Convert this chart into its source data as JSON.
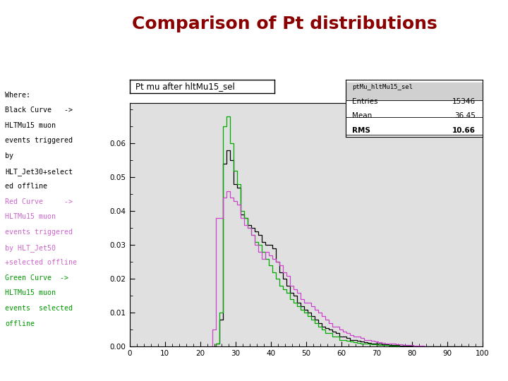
{
  "title": "Comparison of Pt distributions",
  "title_color": "#8B0000",
  "title_fontsize": 18,
  "plot_title": "Pt mu after hltMu15_sel",
  "xlim": [
    0,
    100
  ],
  "ylim": [
    0,
    0.072
  ],
  "xticks": [
    0,
    10,
    20,
    30,
    40,
    50,
    60,
    70,
    80,
    90,
    100
  ],
  "yticks": [
    0,
    0.01,
    0.02,
    0.03,
    0.04,
    0.05,
    0.06
  ],
  "bg_color": "#e0e0e0",
  "fig_bg": "#ffffff",
  "stats_label": "ptMu_hltMu15_sel",
  "stats_entries": "15346",
  "stats_mean": "36.45",
  "stats_rms": "10.66",
  "left_text": [
    {
      "text": "Where:",
      "color": "#000000"
    },
    {
      "text": "Black Curve   ->",
      "color": "#000000"
    },
    {
      "text": "HLTMu15 muon",
      "color": "#000000"
    },
    {
      "text": "events triggered",
      "color": "#000000"
    },
    {
      "text": "by",
      "color": "#000000"
    },
    {
      "text": "HLT_Jet30+select",
      "color": "#000000"
    },
    {
      "text": "ed offline",
      "color": "#000000"
    },
    {
      "text": "Red Curve     ->",
      "color": "#cc66cc"
    },
    {
      "text": "HLTMu15 muon",
      "color": "#cc66cc"
    },
    {
      "text": "events triggered",
      "color": "#cc66cc"
    },
    {
      "text": "by HLT_Jet50",
      "color": "#cc66cc"
    },
    {
      "text": "+selected offline",
      "color": "#cc66cc"
    },
    {
      "text": "Green Curve  ->",
      "color": "#009900"
    },
    {
      "text": "HLTMu15 muon",
      "color": "#009900"
    },
    {
      "text": "events  selected",
      "color": "#009900"
    },
    {
      "text": "offline",
      "color": "#009900"
    }
  ],
  "black_bins": [
    25,
    26,
    27,
    28,
    29,
    30,
    31,
    32,
    33,
    34,
    35,
    36,
    37,
    38,
    39,
    40,
    41,
    42,
    43,
    44,
    45,
    46,
    47,
    48,
    49,
    50,
    51,
    52,
    53,
    54,
    55,
    56,
    57,
    58,
    59,
    60,
    61,
    62,
    63,
    64,
    65,
    66,
    67,
    68,
    69,
    70,
    71,
    72,
    73,
    74,
    75,
    76,
    77,
    78,
    79,
    80,
    81,
    82,
    83,
    84,
    85,
    86,
    90,
    95
  ],
  "black_vals": [
    0.001,
    0.008,
    0.054,
    0.058,
    0.055,
    0.048,
    0.047,
    0.039,
    0.038,
    0.036,
    0.035,
    0.034,
    0.033,
    0.031,
    0.03,
    0.03,
    0.029,
    0.025,
    0.022,
    0.02,
    0.018,
    0.016,
    0.015,
    0.013,
    0.012,
    0.011,
    0.01,
    0.009,
    0.008,
    0.007,
    0.006,
    0.0055,
    0.005,
    0.0045,
    0.004,
    0.003,
    0.003,
    0.0025,
    0.002,
    0.002,
    0.0018,
    0.0016,
    0.0014,
    0.0012,
    0.001,
    0.001,
    0.0009,
    0.0008,
    0.0007,
    0.0006,
    0.0005,
    0.0004,
    0.0003,
    0.0003,
    0.0002,
    0.0002,
    0.0001,
    0.0001,
    0.0001,
    0.0001,
    0.0001,
    0.0001,
    0.0001,
    0.0001
  ],
  "green_bins": [
    25,
    26,
    27,
    28,
    29,
    30,
    31,
    32,
    33,
    34,
    35,
    36,
    37,
    38,
    39,
    40,
    41,
    42,
    43,
    44,
    45,
    46,
    47,
    48,
    49,
    50,
    51,
    52,
    53,
    54,
    55,
    56,
    57,
    58,
    59,
    60,
    61,
    62,
    63,
    64,
    65,
    66,
    67,
    68,
    69,
    70,
    71,
    72,
    73,
    74,
    75,
    76,
    77,
    78,
    79,
    80,
    81,
    82,
    83,
    84,
    85,
    90,
    95
  ],
  "green_vals": [
    0.001,
    0.01,
    0.065,
    0.068,
    0.06,
    0.052,
    0.048,
    0.04,
    0.038,
    0.035,
    0.033,
    0.031,
    0.03,
    0.028,
    0.026,
    0.024,
    0.022,
    0.02,
    0.018,
    0.017,
    0.016,
    0.014,
    0.013,
    0.012,
    0.011,
    0.01,
    0.009,
    0.008,
    0.007,
    0.006,
    0.005,
    0.004,
    0.004,
    0.003,
    0.003,
    0.002,
    0.002,
    0.0018,
    0.0016,
    0.0014,
    0.0012,
    0.001,
    0.001,
    0.0009,
    0.0008,
    0.0007,
    0.0006,
    0.0005,
    0.0004,
    0.0003,
    0.0002,
    0.0002,
    0.0001,
    0.0001,
    0.0001,
    0.0001,
    0.0001,
    0.0001,
    0.0001,
    0.0001,
    0.0001,
    0.0001,
    0.0001
  ],
  "magenta_bins": [
    23,
    24,
    25,
    26,
    27,
    28,
    29,
    30,
    31,
    32,
    33,
    34,
    35,
    36,
    37,
    38,
    39,
    40,
    41,
    42,
    43,
    44,
    45,
    46,
    47,
    48,
    49,
    50,
    51,
    52,
    53,
    54,
    55,
    56,
    57,
    58,
    59,
    60,
    61,
    62,
    63,
    64,
    65,
    66,
    67,
    68,
    69,
    70,
    71,
    72,
    73,
    74,
    75,
    76,
    77,
    78,
    79,
    80,
    81,
    82,
    83,
    84,
    85,
    90,
    95
  ],
  "magenta_vals": [
    0.0,
    0.005,
    0.038,
    0.038,
    0.044,
    0.046,
    0.044,
    0.043,
    0.042,
    0.038,
    0.036,
    0.035,
    0.033,
    0.03,
    0.028,
    0.026,
    0.028,
    0.027,
    0.026,
    0.025,
    0.024,
    0.022,
    0.021,
    0.018,
    0.017,
    0.016,
    0.014,
    0.013,
    0.013,
    0.012,
    0.011,
    0.01,
    0.009,
    0.008,
    0.007,
    0.006,
    0.006,
    0.005,
    0.0045,
    0.004,
    0.0035,
    0.003,
    0.003,
    0.0025,
    0.002,
    0.002,
    0.0018,
    0.0016,
    0.0014,
    0.0012,
    0.001,
    0.001,
    0.0009,
    0.0008,
    0.0007,
    0.0006,
    0.0005,
    0.0004,
    0.0003,
    0.0002,
    0.0002,
    0.0001,
    0.0001,
    0.0001,
    0.0001
  ]
}
